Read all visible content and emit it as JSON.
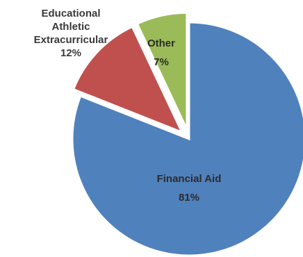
{
  "chart_data": {
    "type": "pie",
    "slices": [
      {
        "label": "Financial Aid",
        "value": 81,
        "display": "81%",
        "color": "#4f81bd"
      },
      {
        "label": "Educational Athletic Extracurricular",
        "label_lines": [
          "Educational",
          "Athletic",
          "Extracurricular"
        ],
        "value": 12,
        "display": "12%",
        "color": "#c0504d",
        "exploded": true
      },
      {
        "label": "Other",
        "value": 7,
        "display": "7%",
        "color": "#9bbb59",
        "exploded": true
      }
    ],
    "legend": "none"
  }
}
